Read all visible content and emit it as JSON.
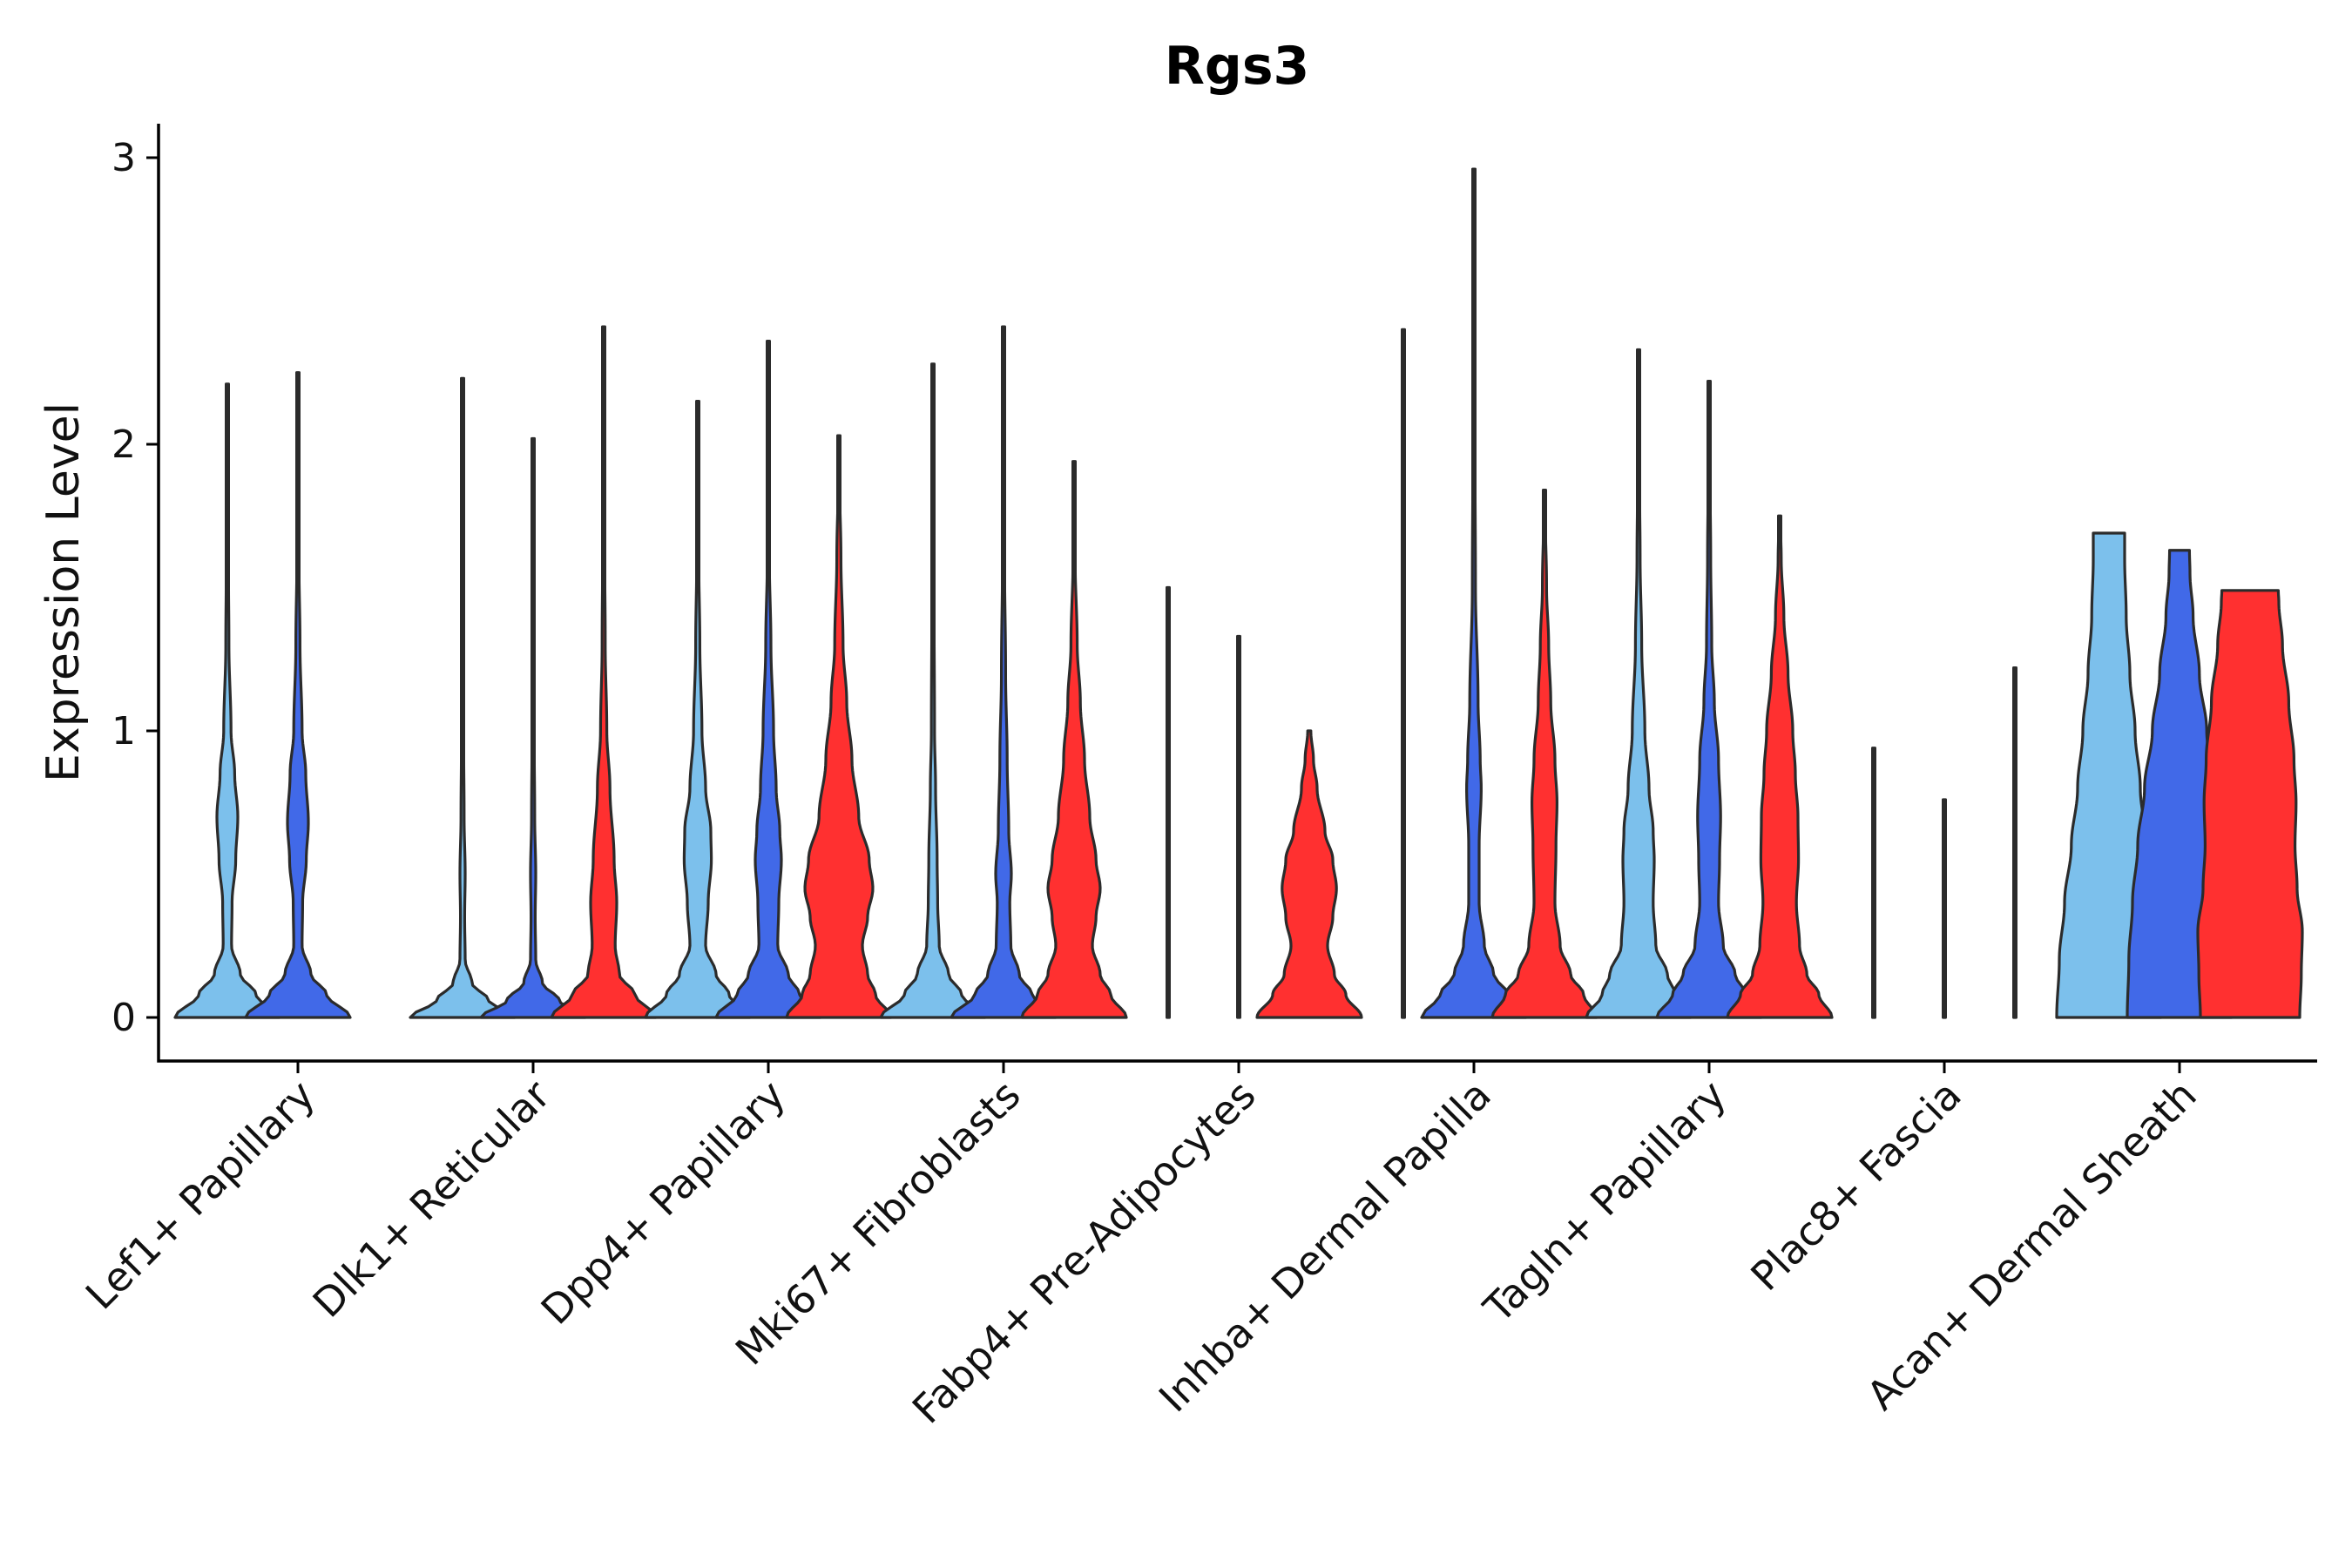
{
  "chart_data": {
    "type": "violin",
    "title": "Rgs3",
    "xlabel": "",
    "ylabel": "Expression Level",
    "ylim": [
      -0.15,
      3.12
    ],
    "yticks": [
      0,
      1,
      2,
      3
    ],
    "series_colors": [
      "#7cc0ec",
      "#4169e8",
      "#ff3030"
    ],
    "categories": [
      "Lef1+ Papillary",
      "Dlk1+ Reticular",
      "Dpp4+ Papillary",
      "Mki67+ Fibroblasts",
      "Fabp4+ Pre-Adipocytes",
      "Inhba+ Dermal Papilla",
      "Tagln+ Papillary",
      "Plac8+ Fascia",
      "Acan+ Dermal Sheath"
    ],
    "violins": [
      [
        {
          "max": 2.21,
          "profile": [
            [
              0,
              1
            ],
            [
              0.08,
              0.55
            ],
            [
              0.15,
              0.25
            ],
            [
              0.25,
              0.08
            ],
            [
              0.4,
              0.09
            ],
            [
              0.55,
              0.16
            ],
            [
              0.7,
              0.2
            ],
            [
              0.85,
              0.14
            ],
            [
              1.0,
              0.07
            ],
            [
              1.3,
              0.03
            ],
            [
              1.6,
              0.02
            ],
            [
              2.0,
              0.01
            ]
          ]
        },
        {
          "max": 2.25,
          "profile": [
            [
              0,
              1
            ],
            [
              0.08,
              0.55
            ],
            [
              0.15,
              0.25
            ],
            [
              0.25,
              0.08
            ],
            [
              0.4,
              0.09
            ],
            [
              0.55,
              0.16
            ],
            [
              0.68,
              0.2
            ],
            [
              0.85,
              0.15
            ],
            [
              1.0,
              0.08
            ],
            [
              1.3,
              0.04
            ],
            [
              1.6,
              0.02
            ],
            [
              2.0,
              0.01
            ]
          ]
        },
        null
      ],
      [
        {
          "max": 2.23,
          "profile": [
            [
              0,
              1
            ],
            [
              0.06,
              0.5
            ],
            [
              0.12,
              0.18
            ],
            [
              0.2,
              0.05
            ],
            [
              0.35,
              0.04
            ],
            [
              0.5,
              0.05
            ],
            [
              0.7,
              0.03
            ],
            [
              1.0,
              0.02
            ],
            [
              1.5,
              0.01
            ],
            [
              2.0,
              0.005
            ]
          ]
        },
        {
          "max": 2.02,
          "profile": [
            [
              0,
              1
            ],
            [
              0.06,
              0.5
            ],
            [
              0.12,
              0.18
            ],
            [
              0.2,
              0.05
            ],
            [
              0.35,
              0.04
            ],
            [
              0.5,
              0.05
            ],
            [
              0.7,
              0.03
            ],
            [
              1.0,
              0.02
            ],
            [
              1.5,
              0.01
            ],
            [
              2.0,
              0.005
            ]
          ]
        },
        {
          "max": 2.41,
          "profile": [
            [
              0,
              1
            ],
            [
              0.08,
              0.6
            ],
            [
              0.15,
              0.3
            ],
            [
              0.25,
              0.22
            ],
            [
              0.4,
              0.25
            ],
            [
              0.55,
              0.2
            ],
            [
              0.8,
              0.12
            ],
            [
              1.0,
              0.06
            ],
            [
              1.3,
              0.03
            ],
            [
              1.8,
              0.01
            ]
          ]
        }
      ],
      [
        {
          "max": 2.15,
          "profile": [
            [
              0,
              1
            ],
            [
              0.08,
              0.6
            ],
            [
              0.15,
              0.35
            ],
            [
              0.25,
              0.15
            ],
            [
              0.4,
              0.2
            ],
            [
              0.55,
              0.26
            ],
            [
              0.65,
              0.25
            ],
            [
              0.8,
              0.15
            ],
            [
              1.0,
              0.08
            ],
            [
              1.3,
              0.04
            ],
            [
              1.6,
              0.02
            ],
            [
              2.0,
              0.01
            ]
          ]
        },
        {
          "max": 2.36,
          "profile": [
            [
              0,
              1
            ],
            [
              0.08,
              0.6
            ],
            [
              0.15,
              0.38
            ],
            [
              0.25,
              0.18
            ],
            [
              0.4,
              0.2
            ],
            [
              0.55,
              0.25
            ],
            [
              0.65,
              0.22
            ],
            [
              0.8,
              0.15
            ],
            [
              1.0,
              0.1
            ],
            [
              1.3,
              0.05
            ],
            [
              1.6,
              0.02
            ],
            [
              2.0,
              0.01
            ]
          ]
        },
        {
          "max": 2.03,
          "profile": [
            [
              0,
              1
            ],
            [
              0.08,
              0.7
            ],
            [
              0.15,
              0.55
            ],
            [
              0.25,
              0.45
            ],
            [
              0.35,
              0.55
            ],
            [
              0.45,
              0.65
            ],
            [
              0.55,
              0.58
            ],
            [
              0.7,
              0.38
            ],
            [
              0.9,
              0.25
            ],
            [
              1.1,
              0.15
            ],
            [
              1.3,
              0.08
            ],
            [
              1.6,
              0.04
            ],
            [
              1.9,
              0.01
            ]
          ]
        }
      ],
      [
        {
          "max": 2.28,
          "profile": [
            [
              0,
              1
            ],
            [
              0.08,
              0.55
            ],
            [
              0.15,
              0.3
            ],
            [
              0.25,
              0.12
            ],
            [
              0.4,
              0.09
            ],
            [
              0.55,
              0.08
            ],
            [
              0.8,
              0.05
            ],
            [
              1.0,
              0.03
            ],
            [
              1.5,
              0.02
            ],
            [
              2.0,
              0.01
            ]
          ]
        },
        {
          "max": 2.41,
          "profile": [
            [
              0,
              1
            ],
            [
              0.08,
              0.55
            ],
            [
              0.15,
              0.3
            ],
            [
              0.25,
              0.14
            ],
            [
              0.4,
              0.12
            ],
            [
              0.5,
              0.15
            ],
            [
              0.65,
              0.1
            ],
            [
              0.9,
              0.07
            ],
            [
              1.2,
              0.04
            ],
            [
              1.6,
              0.02
            ],
            [
              2.0,
              0.01
            ]
          ]
        },
        {
          "max": 1.94,
          "profile": [
            [
              0,
              1
            ],
            [
              0.08,
              0.7
            ],
            [
              0.15,
              0.5
            ],
            [
              0.25,
              0.35
            ],
            [
              0.35,
              0.42
            ],
            [
              0.45,
              0.5
            ],
            [
              0.55,
              0.42
            ],
            [
              0.7,
              0.3
            ],
            [
              0.9,
              0.2
            ],
            [
              1.1,
              0.12
            ],
            [
              1.3,
              0.06
            ],
            [
              1.6,
              0.02
            ],
            [
              1.9,
              0.01
            ]
          ]
        }
      ],
      [
        {
          "max": 1.5,
          "profile": [
            [
              0,
              0.02
            ],
            [
              0.002,
              0.01
            ],
            [
              0.005,
              0.004
            ]
          ]
        },
        {
          "max": 1.33,
          "profile": [
            [
              0,
              0.02
            ],
            [
              0.002,
              0.01
            ],
            [
              0.005,
              0.004
            ]
          ]
        },
        {
          "max": 1.0,
          "profile": [
            [
              0,
              1
            ],
            [
              0.08,
              0.7
            ],
            [
              0.15,
              0.48
            ],
            [
              0.25,
              0.35
            ],
            [
              0.35,
              0.45
            ],
            [
              0.45,
              0.52
            ],
            [
              0.55,
              0.45
            ],
            [
              0.65,
              0.3
            ],
            [
              0.8,
              0.15
            ],
            [
              0.9,
              0.08
            ],
            [
              1.0,
              0.03
            ]
          ]
        }
      ],
      [
        {
          "max": 2.4,
          "profile": [
            [
              0,
              0.02
            ],
            [
              0.002,
              0.01
            ],
            [
              0.005,
              0.004
            ]
          ]
        },
        {
          "max": 2.96,
          "profile": [
            [
              0,
              1
            ],
            [
              0.08,
              0.65
            ],
            [
              0.15,
              0.38
            ],
            [
              0.25,
              0.2
            ],
            [
              0.4,
              0.1
            ],
            [
              0.6,
              0.1
            ],
            [
              0.8,
              0.14
            ],
            [
              0.9,
              0.12
            ],
            [
              1.1,
              0.08
            ],
            [
              1.5,
              0.03
            ],
            [
              2.0,
              0.02
            ],
            [
              2.5,
              0.01
            ]
          ]
        },
        {
          "max": 1.84,
          "profile": [
            [
              0,
              1
            ],
            [
              0.08,
              0.75
            ],
            [
              0.15,
              0.5
            ],
            [
              0.25,
              0.3
            ],
            [
              0.4,
              0.2
            ],
            [
              0.6,
              0.22
            ],
            [
              0.75,
              0.24
            ],
            [
              0.9,
              0.2
            ],
            [
              1.1,
              0.12
            ],
            [
              1.3,
              0.08
            ],
            [
              1.5,
              0.04
            ],
            [
              1.8,
              0.01
            ]
          ]
        }
      ],
      [
        {
          "max": 2.33,
          "profile": [
            [
              0,
              1
            ],
            [
              0.08,
              0.7
            ],
            [
              0.15,
              0.55
            ],
            [
              0.25,
              0.33
            ],
            [
              0.4,
              0.28
            ],
            [
              0.55,
              0.3
            ],
            [
              0.65,
              0.28
            ],
            [
              0.8,
              0.2
            ],
            [
              1.0,
              0.12
            ],
            [
              1.3,
              0.06
            ],
            [
              1.6,
              0.03
            ],
            [
              2.0,
              0.01
            ]
          ]
        },
        {
          "max": 2.22,
          "profile": [
            [
              0,
              1
            ],
            [
              0.08,
              0.7
            ],
            [
              0.15,
              0.5
            ],
            [
              0.25,
              0.27
            ],
            [
              0.4,
              0.18
            ],
            [
              0.55,
              0.2
            ],
            [
              0.7,
              0.22
            ],
            [
              0.9,
              0.18
            ],
            [
              1.1,
              0.1
            ],
            [
              1.3,
              0.05
            ],
            [
              1.6,
              0.03
            ],
            [
              2.0,
              0.01
            ]
          ]
        },
        {
          "max": 1.75,
          "profile": [
            [
              0,
              1
            ],
            [
              0.08,
              0.75
            ],
            [
              0.15,
              0.52
            ],
            [
              0.25,
              0.38
            ],
            [
              0.4,
              0.32
            ],
            [
              0.55,
              0.36
            ],
            [
              0.7,
              0.35
            ],
            [
              0.85,
              0.3
            ],
            [
              1.0,
              0.25
            ],
            [
              1.2,
              0.16
            ],
            [
              1.4,
              0.08
            ],
            [
              1.6,
              0.03
            ],
            [
              1.75,
              0.01
            ]
          ]
        }
      ],
      [
        {
          "max": 0.94,
          "profile": [
            [
              0,
              0.02
            ],
            [
              0.002,
              0.01
            ],
            [
              0.005,
              0.004
            ]
          ]
        },
        {
          "max": 0.76,
          "profile": [
            [
              0,
              0.02
            ],
            [
              0.002,
              0.01
            ],
            [
              0.005,
              0.004
            ]
          ]
        },
        {
          "max": 1.22,
          "profile": [
            [
              0,
              0.02
            ],
            [
              0.002,
              0.01
            ],
            [
              0.005,
              0.004
            ]
          ]
        }
      ],
      [
        {
          "max": 1.69,
          "profile": [
            [
              0,
              1
            ],
            [
              0.2,
              0.95
            ],
            [
              0.4,
              0.85
            ],
            [
              0.6,
              0.72
            ],
            [
              0.8,
              0.6
            ],
            [
              1.0,
              0.5
            ],
            [
              1.2,
              0.4
            ],
            [
              1.4,
              0.33
            ],
            [
              1.6,
              0.3
            ],
            [
              1.69,
              0.3
            ]
          ]
        },
        {
          "max": 1.63,
          "profile": [
            [
              0,
              1
            ],
            [
              0.2,
              0.97
            ],
            [
              0.4,
              0.9
            ],
            [
              0.6,
              0.8
            ],
            [
              0.8,
              0.67
            ],
            [
              1.0,
              0.52
            ],
            [
              1.2,
              0.38
            ],
            [
              1.4,
              0.26
            ],
            [
              1.55,
              0.2
            ],
            [
              1.63,
              0.19
            ]
          ]
        },
        {
          "max": 1.49,
          "profile": [
            [
              0,
              0.95
            ],
            [
              0.15,
              0.98
            ],
            [
              0.3,
              1.0
            ],
            [
              0.45,
              0.9
            ],
            [
              0.6,
              0.86
            ],
            [
              0.75,
              0.88
            ],
            [
              0.9,
              0.84
            ],
            [
              1.1,
              0.74
            ],
            [
              1.3,
              0.62
            ],
            [
              1.45,
              0.55
            ],
            [
              1.49,
              0.54
            ]
          ]
        }
      ]
    ]
  }
}
